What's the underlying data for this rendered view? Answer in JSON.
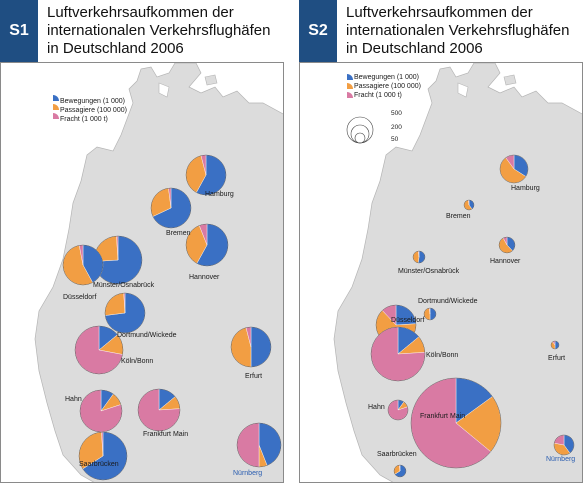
{
  "colors": {
    "movements": "#3a70c4",
    "passengers": "#f29e43",
    "freight": "#d97aa3",
    "land": "#dddddd",
    "header": "#1f4e82"
  },
  "panels": [
    {
      "badge": "S1",
      "title_lines": [
        "Luftverkehrsaufkommen der",
        "internationalen Verkehrsflughäfen",
        "in Deutschland 2006"
      ],
      "legend": [
        "Bewegungen (1 000)",
        "Passagiere (100 000)",
        "Fracht (1 000 t)"
      ]
    },
    {
      "badge": "S2",
      "title_lines": [
        "Luftverkehrsaufkommen der",
        "internationalen Verkehrsflughäfen",
        "in Deutschland 2006"
      ],
      "legend": [
        "Bewegungen (1 000)",
        "Passagiere (100 000)",
        "Fracht (1 000 t)"
      ],
      "size_scale": [
        "500",
        "200",
        "50"
      ]
    }
  ],
  "airports_s1": [
    {
      "name": "Hamburg",
      "shares": [
        0.58,
        0.38,
        0.04
      ]
    },
    {
      "name": "Bremen",
      "shares": [
        0.68,
        0.3,
        0.02
      ]
    },
    {
      "name": "Hannover",
      "shares": [
        0.58,
        0.36,
        0.06
      ]
    },
    {
      "name": "Münster/Osnabrück",
      "shares": [
        0.74,
        0.25,
        0.01
      ]
    },
    {
      "name": "Düsseldorf",
      "shares": [
        0.42,
        0.55,
        0.03
      ]
    },
    {
      "name": "Dortmund/Wickede",
      "shares": [
        0.73,
        0.26,
        0.01
      ]
    },
    {
      "name": "Köln/Bonn",
      "shares": [
        0.14,
        0.14,
        0.72
      ]
    },
    {
      "name": "Erfurt",
      "shares": [
        0.5,
        0.46,
        0.04
      ]
    },
    {
      "name": "Hahn",
      "shares": [
        0.1,
        0.1,
        0.8
      ]
    },
    {
      "name": "Frankfurt Main",
      "shares": [
        0.14,
        0.1,
        0.76
      ]
    },
    {
      "name": "Saarbrücken",
      "shares": [
        0.66,
        0.33,
        0.01
      ]
    },
    {
      "name": "Nürnberg",
      "shares": [
        0.44,
        0.06,
        0.5
      ]
    }
  ],
  "airports_s2": [
    {
      "name": "Hamburg",
      "shares": [
        0.34,
        0.56,
        0.1
      ]
    },
    {
      "name": "Bremen",
      "shares": [
        0.4,
        0.58,
        0.02
      ]
    },
    {
      "name": "Hannover",
      "shares": [
        0.38,
        0.54,
        0.08
      ]
    },
    {
      "name": "Münster/Osnabrück",
      "shares": [
        0.52,
        0.46,
        0.02
      ]
    },
    {
      "name": "Dortmund/Wickede",
      "shares": [
        0.5,
        0.48,
        0.02
      ]
    },
    {
      "name": "Düsseldorf",
      "shares": [
        0.24,
        0.64,
        0.12
      ]
    },
    {
      "name": "Köln/Bonn",
      "shares": [
        0.14,
        0.1,
        0.76
      ]
    },
    {
      "name": "Erfurt",
      "shares": [
        0.5,
        0.4,
        0.1
      ]
    },
    {
      "name": "Hahn",
      "shares": [
        0.1,
        0.1,
        0.8
      ]
    },
    {
      "name": "Frankfurt Main",
      "shares": [
        0.15,
        0.21,
        0.64
      ]
    },
    {
      "name": "Saarbrücken",
      "shares": [
        0.66,
        0.32,
        0.02
      ]
    },
    {
      "name": "Nürnberg",
      "shares": [
        0.4,
        0.38,
        0.22
      ]
    }
  ]
}
